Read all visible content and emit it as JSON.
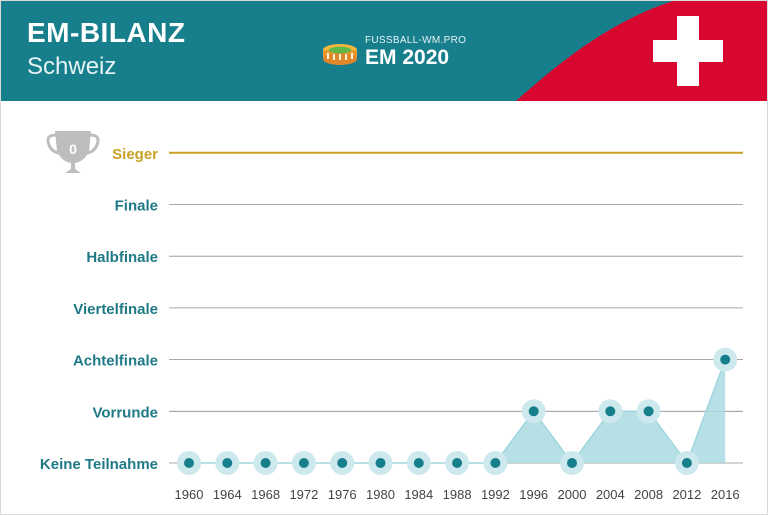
{
  "header": {
    "title": "EM-BILANZ",
    "subtitle": "Schweiz",
    "brand_small": "FUSSBALL-WM.PRO",
    "brand_big": "EM 2020",
    "flag_color": "#d7072f",
    "header_color": "#177f8c"
  },
  "trophy": {
    "icon": "trophy-icon",
    "count": "0"
  },
  "chart_data": {
    "type": "line",
    "title": "",
    "xlabel": "",
    "ylabel": "",
    "stages": [
      "Keine Teilnahme",
      "Vorrunde",
      "Achtelfinale",
      "Viertelfinale",
      "Halbfinale",
      "Finale",
      "Sieger"
    ],
    "x": [
      "1960",
      "1964",
      "1968",
      "1972",
      "1976",
      "1980",
      "1984",
      "1988",
      "1992",
      "1996",
      "2000",
      "2004",
      "2008",
      "2012",
      "2016"
    ],
    "series": [
      {
        "values": [
          0,
          0,
          0,
          0,
          0,
          0,
          0,
          0,
          0,
          1,
          0,
          1,
          1,
          0,
          2
        ]
      }
    ],
    "colors": {
      "line": "#9fd6df",
      "area": "#aadbe2",
      "halo": "#cde9ee",
      "point": "#177f8c",
      "label": "#1f7a86",
      "sieger": "#c9a227",
      "grid": "#8a8a8a",
      "tick": "#444444"
    },
    "grid": true,
    "legend": "none"
  }
}
